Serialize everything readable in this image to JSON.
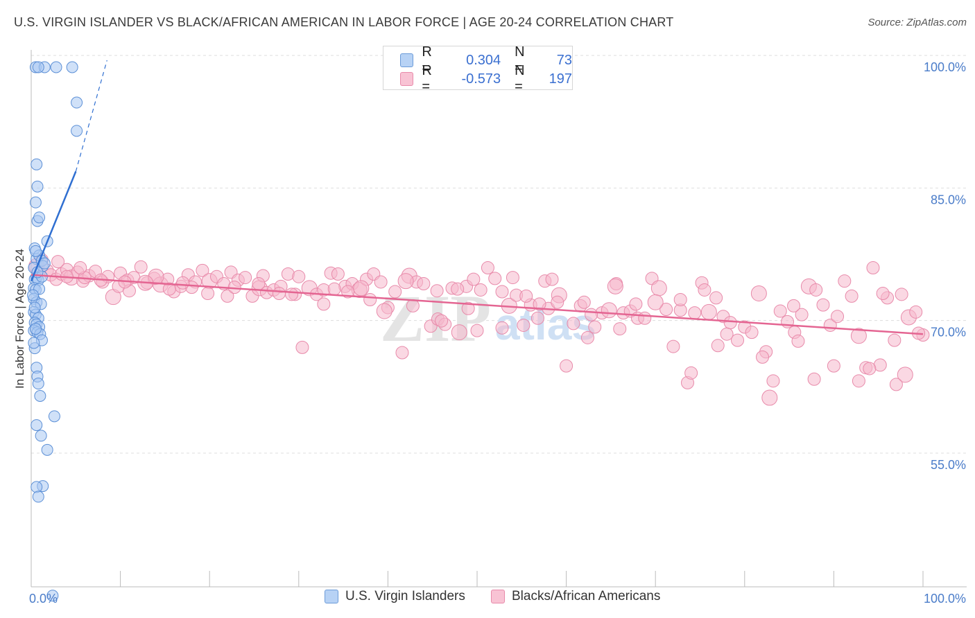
{
  "title": "U.S. VIRGIN ISLANDER VS BLACK/AFRICAN AMERICAN IN LABOR FORCE | AGE 20-24 CORRELATION CHART",
  "source": "Source: ZipAtlas.com",
  "watermark": {
    "zip": "ZIP",
    "atlas": "atlas"
  },
  "legend": {
    "r_label": "R =",
    "n_label": "N =",
    "blue": {
      "r": "0.304",
      "n": "73"
    },
    "pink": {
      "r": "-0.573",
      "n": "197"
    }
  },
  "colors": {
    "blue_fill": "#a9c8f2",
    "blue_stroke": "#5b8fd6",
    "blue_line": "#2f6fd1",
    "pink_fill": "#f6b8cc",
    "pink_stroke": "#e88aaa",
    "pink_line": "#e46592",
    "tick_text": "#4a7cc9",
    "grid": "#dddddd"
  },
  "chart_data": {
    "type": "scatter",
    "title": "U.S. VIRGIN ISLANDER VS BLACK/AFRICAN AMERICAN IN LABOR FORCE | AGE 20-24 CORRELATION CHART",
    "xlabel": "",
    "ylabel": "In Labor Force | Age 20-24",
    "xlim": [
      0,
      100
    ],
    "ylim": [
      38,
      102
    ],
    "x_tick_labels": [
      "0.0%",
      "100.0%"
    ],
    "y_ticks": [
      100,
      85,
      70,
      55
    ],
    "y_tick_labels": [
      "100.0%",
      "85.0%",
      "70.0%",
      "55.0%"
    ],
    "grid": true,
    "legend_position": "top-center",
    "series": [
      {
        "name": "U.S. Virgin Islanders",
        "r": 0.304,
        "n": 73,
        "trend": {
          "x": [
            0,
            5
          ],
          "y": [
            75.8,
            88.2
          ],
          "dashed_to": {
            "x": 8.5,
            "y": 100
          }
        },
        "points": [
          [
            0.5,
            100
          ],
          [
            1.5,
            100
          ],
          [
            0.8,
            100
          ],
          [
            2.8,
            100
          ],
          [
            4.6,
            100
          ],
          [
            5.1,
            96
          ],
          [
            5.1,
            92.8
          ],
          [
            0.6,
            89
          ],
          [
            0.7,
            86.5
          ],
          [
            0.5,
            84.7
          ],
          [
            0.7,
            82.6
          ],
          [
            0.9,
            83
          ],
          [
            1.8,
            80.3
          ],
          [
            0.4,
            79.5
          ],
          [
            0.6,
            78.3
          ],
          [
            0.9,
            78.7
          ],
          [
            1.2,
            78.1
          ],
          [
            0.3,
            77.3
          ],
          [
            1.3,
            77.5
          ],
          [
            0.4,
            76
          ],
          [
            0.6,
            76.2
          ],
          [
            0.8,
            75.9
          ],
          [
            1.2,
            76.3
          ],
          [
            0.3,
            75
          ],
          [
            0.5,
            74.8
          ],
          [
            0.9,
            74.9
          ],
          [
            0.3,
            73.8
          ],
          [
            0.6,
            73.4
          ],
          [
            1.1,
            73.2
          ],
          [
            0.3,
            72.3
          ],
          [
            0.5,
            72.0
          ],
          [
            0.8,
            71.6
          ],
          [
            0.4,
            71.1
          ],
          [
            0.6,
            70.9
          ],
          [
            0.9,
            70.6
          ],
          [
            0.3,
            70.2
          ],
          [
            0.7,
            70.0
          ],
          [
            1.0,
            69.8
          ],
          [
            1.2,
            69.1
          ],
          [
            0.4,
            68.2
          ],
          [
            0.6,
            66.0
          ],
          [
            0.7,
            65.0
          ],
          [
            0.8,
            64.2
          ],
          [
            1.0,
            62.8
          ],
          [
            2.6,
            60.5
          ],
          [
            0.6,
            59.5
          ],
          [
            1.1,
            58.3
          ],
          [
            1.8,
            56.7
          ],
          [
            1.3,
            52.6
          ],
          [
            0.6,
            52.5
          ],
          [
            0.8,
            51.4
          ],
          [
            2.4,
            40.2
          ],
          [
            0.3,
            68.8
          ],
          [
            0.5,
            70.4
          ],
          [
            0.2,
            74.2
          ],
          [
            0.4,
            72.8
          ],
          [
            0.7,
            76.8
          ],
          [
            1.5,
            77.8
          ],
          [
            0.5,
            79.2
          ]
        ]
      },
      {
        "name": "Blacks/African Americans",
        "r": -0.573,
        "n": 197,
        "trend": {
          "x": [
            0,
            100
          ],
          "y": [
            76.5,
            69.8
          ]
        },
        "points": [
          [
            0.6,
            77.5
          ],
          [
            1.2,
            78.2
          ],
          [
            1.8,
            77.0
          ],
          [
            2.2,
            76.5
          ],
          [
            2.8,
            76.0
          ],
          [
            3.4,
            76.6
          ],
          [
            4.0,
            77.1
          ],
          [
            4.5,
            76.2
          ],
          [
            5.2,
            76.8
          ],
          [
            5.8,
            75.8
          ],
          [
            6.5,
            76.4
          ],
          [
            7.2,
            76.9
          ],
          [
            8.0,
            75.7
          ],
          [
            8.6,
            76.3
          ],
          [
            9.2,
            74.0
          ],
          [
            10.0,
            76.7
          ],
          [
            10.8,
            75.9
          ],
          [
            11.5,
            76.2
          ],
          [
            12.3,
            77.4
          ],
          [
            13.0,
            75.6
          ],
          [
            13.8,
            76.1
          ],
          [
            14.5,
            75.4
          ],
          [
            15.3,
            76.0
          ],
          [
            16.0,
            74.6
          ],
          [
            16.8,
            75.2
          ],
          [
            17.6,
            76.5
          ],
          [
            18.4,
            75.7
          ],
          [
            19.2,
            77.0
          ],
          [
            20.0,
            75.8
          ],
          [
            20.8,
            76.3
          ],
          [
            21.6,
            75.5
          ],
          [
            22.4,
            76.8
          ],
          [
            23.2,
            75.9
          ],
          [
            24.0,
            76.2
          ],
          [
            24.8,
            74.1
          ],
          [
            25.6,
            75.0
          ],
          [
            26.4,
            74.5
          ],
          [
            27.2,
            74.8
          ],
          [
            28.0,
            75.2
          ],
          [
            28.8,
            76.6
          ],
          [
            29.6,
            74.3
          ],
          [
            30.4,
            68.3
          ],
          [
            31.2,
            75.0
          ],
          [
            32.0,
            74.3
          ],
          [
            32.8,
            74.8
          ],
          [
            33.6,
            76.7
          ],
          [
            34.4,
            76.6
          ],
          [
            35.2,
            75.2
          ],
          [
            36.0,
            75.5
          ],
          [
            36.8,
            74.8
          ],
          [
            37.6,
            76.0
          ],
          [
            38.4,
            76.6
          ],
          [
            39.2,
            75.7
          ],
          [
            40.0,
            72.8
          ],
          [
            40.8,
            74.6
          ],
          [
            41.6,
            67.7
          ],
          [
            42.4,
            76.4
          ],
          [
            43.2,
            75.7
          ],
          [
            44.0,
            75.5
          ],
          [
            44.8,
            70.7
          ],
          [
            45.6,
            71.5
          ],
          [
            46.4,
            70.9
          ],
          [
            47.2,
            75.0
          ],
          [
            48.0,
            70.0
          ],
          [
            48.8,
            75.2
          ],
          [
            49.6,
            76.0
          ],
          [
            50.4,
            74.8
          ],
          [
            51.2,
            77.3
          ],
          [
            52.0,
            76.1
          ],
          [
            52.8,
            74.6
          ],
          [
            53.6,
            73.0
          ],
          [
            54.4,
            74.2
          ],
          [
            55.2,
            70.8
          ],
          [
            56.0,
            73.1
          ],
          [
            56.8,
            71.6
          ],
          [
            57.6,
            75.8
          ],
          [
            58.4,
            76.0
          ],
          [
            59.2,
            74.2
          ],
          [
            60.0,
            66.2
          ],
          [
            60.8,
            71.0
          ],
          [
            61.6,
            73.0
          ],
          [
            62.4,
            69.4
          ],
          [
            63.2,
            70.6
          ],
          [
            64.0,
            72.2
          ],
          [
            64.8,
            72.5
          ],
          [
            65.6,
            75.5
          ],
          [
            66.4,
            72.2
          ],
          [
            67.2,
            72.4
          ],
          [
            68.0,
            71.6
          ],
          [
            68.8,
            71.6
          ],
          [
            69.6,
            76.1
          ],
          [
            70.4,
            75.0
          ],
          [
            71.2,
            72.6
          ],
          [
            72.0,
            68.4
          ],
          [
            72.8,
            72.5
          ],
          [
            73.6,
            64.3
          ],
          [
            74.4,
            72.2
          ],
          [
            75.2,
            75.6
          ],
          [
            76.0,
            72.3
          ],
          [
            76.8,
            73.9
          ],
          [
            77.6,
            71.8
          ],
          [
            78.4,
            71.1
          ],
          [
            79.2,
            69.1
          ],
          [
            80.0,
            70.6
          ],
          [
            80.8,
            70.0
          ],
          [
            81.6,
            74.4
          ],
          [
            82.4,
            67.8
          ],
          [
            83.2,
            64.5
          ],
          [
            84.0,
            72.4
          ],
          [
            84.8,
            71.2
          ],
          [
            85.6,
            70.0
          ],
          [
            86.4,
            72.0
          ],
          [
            87.2,
            75.2
          ],
          [
            88.0,
            74.8
          ],
          [
            88.8,
            73.1
          ],
          [
            89.6,
            70.8
          ],
          [
            90.4,
            71.8
          ],
          [
            91.2,
            75.8
          ],
          [
            92.0,
            74.1
          ],
          [
            92.8,
            69.6
          ],
          [
            93.6,
            66.0
          ],
          [
            94.4,
            77.3
          ],
          [
            95.2,
            66.3
          ],
          [
            96.0,
            73.9
          ],
          [
            96.8,
            69.1
          ],
          [
            97.6,
            74.3
          ],
          [
            98.4,
            71.7
          ],
          [
            99.2,
            72.3
          ],
          [
            100.0,
            69.7
          ],
          [
            3.0,
            78.0
          ],
          [
            6.0,
            76.2
          ],
          [
            9.8,
            75.2
          ],
          [
            11.0,
            74.7
          ],
          [
            14.0,
            76.3
          ],
          [
            18.0,
            75.1
          ],
          [
            22.0,
            74.1
          ],
          [
            26.0,
            76.4
          ],
          [
            30.0,
            76.3
          ],
          [
            34.0,
            74.9
          ],
          [
            38.0,
            73.7
          ],
          [
            42.0,
            75.8
          ],
          [
            46.0,
            71.3
          ],
          [
            50.0,
            70.2
          ],
          [
            54.0,
            76.2
          ],
          [
            58.0,
            72.7
          ],
          [
            62.0,
            73.4
          ],
          [
            66.0,
            70.4
          ],
          [
            70.0,
            73.4
          ],
          [
            74.0,
            65.4
          ],
          [
            78.0,
            69.8
          ],
          [
            82.0,
            67.2
          ],
          [
            86.0,
            69.0
          ],
          [
            90.0,
            66.2
          ],
          [
            94.0,
            65.9
          ],
          [
            98.0,
            65.2
          ],
          [
            5.5,
            77.3
          ],
          [
            15.5,
            74.9
          ],
          [
            25.5,
            75.5
          ],
          [
            35.5,
            74.6
          ],
          [
            45.5,
            74.7
          ],
          [
            55.5,
            74.1
          ],
          [
            65.5,
            75.2
          ],
          [
            75.5,
            74.8
          ],
          [
            85.5,
            73.0
          ],
          [
            95.5,
            74.4
          ],
          [
            7.8,
            75.9
          ],
          [
            17.0,
            75.6
          ],
          [
            27.8,
            74.4
          ],
          [
            37.0,
            75.0
          ],
          [
            47.8,
            74.9
          ],
          [
            57.0,
            73.2
          ],
          [
            67.8,
            73.2
          ],
          [
            77.0,
            68.5
          ],
          [
            87.8,
            64.7
          ],
          [
            97.0,
            64.1
          ],
          [
            12.8,
            75.6
          ],
          [
            22.8,
            75.1
          ],
          [
            32.8,
            73.2
          ],
          [
            42.8,
            73.0
          ],
          [
            52.8,
            70.5
          ],
          [
            62.8,
            72.0
          ],
          [
            72.8,
            73.7
          ],
          [
            82.8,
            62.6
          ],
          [
            92.8,
            64.5
          ],
          [
            99.5,
            69.9
          ],
          [
            4.0,
            76.3
          ],
          [
            10.5,
            75.7
          ],
          [
            19.8,
            74.4
          ],
          [
            29.2,
            74.3
          ],
          [
            39.6,
            72.4
          ],
          [
            49.0,
            72.7
          ],
          [
            59.0,
            73.4
          ]
        ]
      }
    ]
  },
  "bottom_legend": {
    "blue_label": "U.S. Virgin Islanders",
    "pink_label": "Blacks/African Americans"
  }
}
